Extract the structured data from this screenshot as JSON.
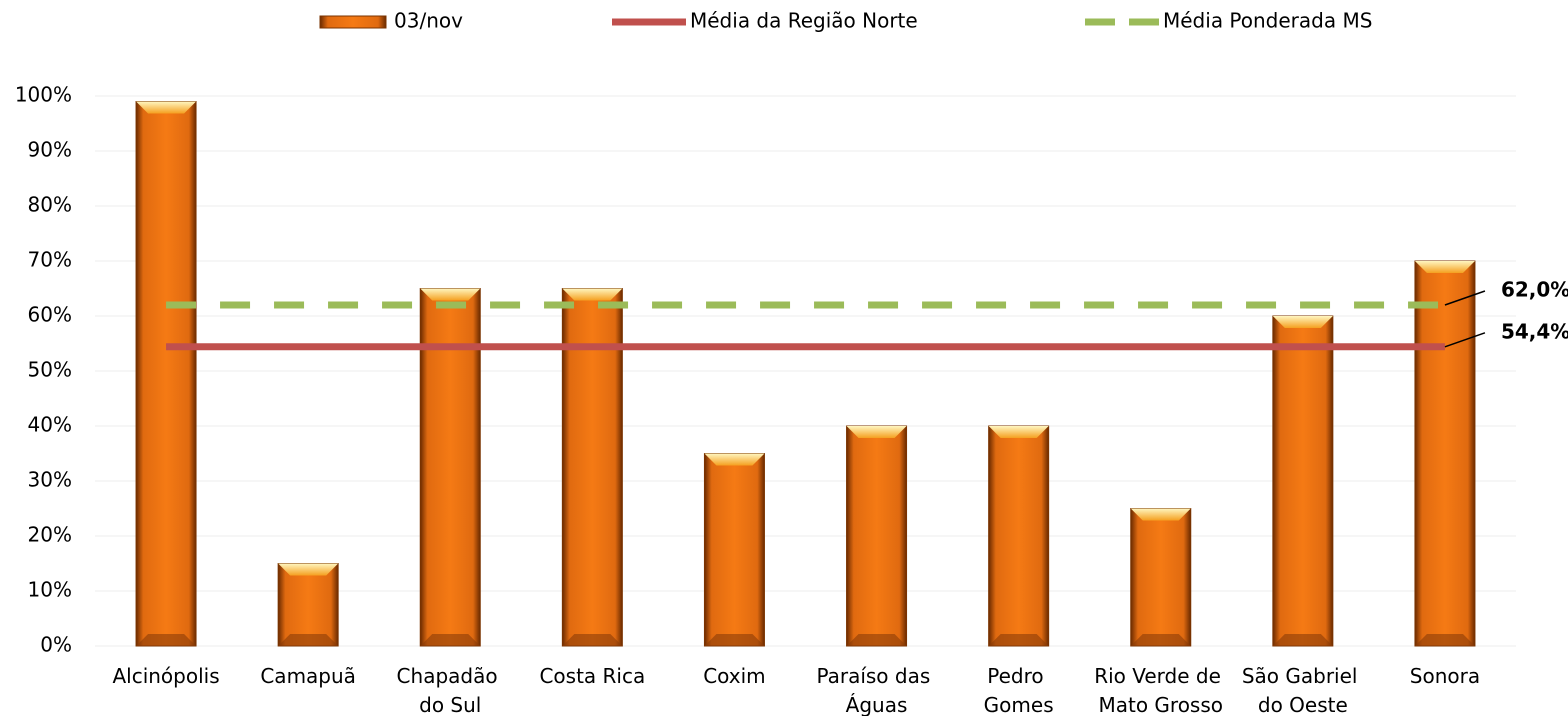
{
  "chart_data": {
    "type": "bar",
    "categories": [
      "Alcinópolis",
      "Camapuã",
      "Chapadão do Sul",
      "Costa Rica",
      "Coxim",
      "Paraíso das Águas",
      "Pedro Gomes",
      "Rio Verde de Mato Grosso",
      "São Gabriel do Oeste",
      "Sonora"
    ],
    "series": [
      {
        "name": "03/nov",
        "color": "#f07010",
        "values": [
          99,
          15,
          65,
          65,
          35,
          40,
          40,
          25,
          60,
          70
        ]
      }
    ],
    "reference_lines": [
      {
        "name": "Média da Região Norte",
        "color": "#c0504d",
        "style": "solid",
        "value": 54.4,
        "value_label": "54,4%"
      },
      {
        "name": "Média Ponderada MS",
        "color": "#9bbb59",
        "style": "dashed",
        "value": 62.0,
        "value_label": "62,0%"
      }
    ],
    "ylim": [
      0,
      100
    ],
    "yticks": [
      {
        "value": 0,
        "label": "0%"
      },
      {
        "value": 10,
        "label": "10%"
      },
      {
        "value": 20,
        "label": "20%"
      },
      {
        "value": 30,
        "label": "30%"
      },
      {
        "value": 40,
        "label": "40%"
      },
      {
        "value": 50,
        "label": "50%"
      },
      {
        "value": 60,
        "label": "60%"
      },
      {
        "value": 70,
        "label": "70%"
      },
      {
        "value": 80,
        "label": "80%"
      },
      {
        "value": 90,
        "label": "90%"
      },
      {
        "value": 100,
        "label": "100%"
      }
    ],
    "grid": true,
    "legend": "top"
  }
}
